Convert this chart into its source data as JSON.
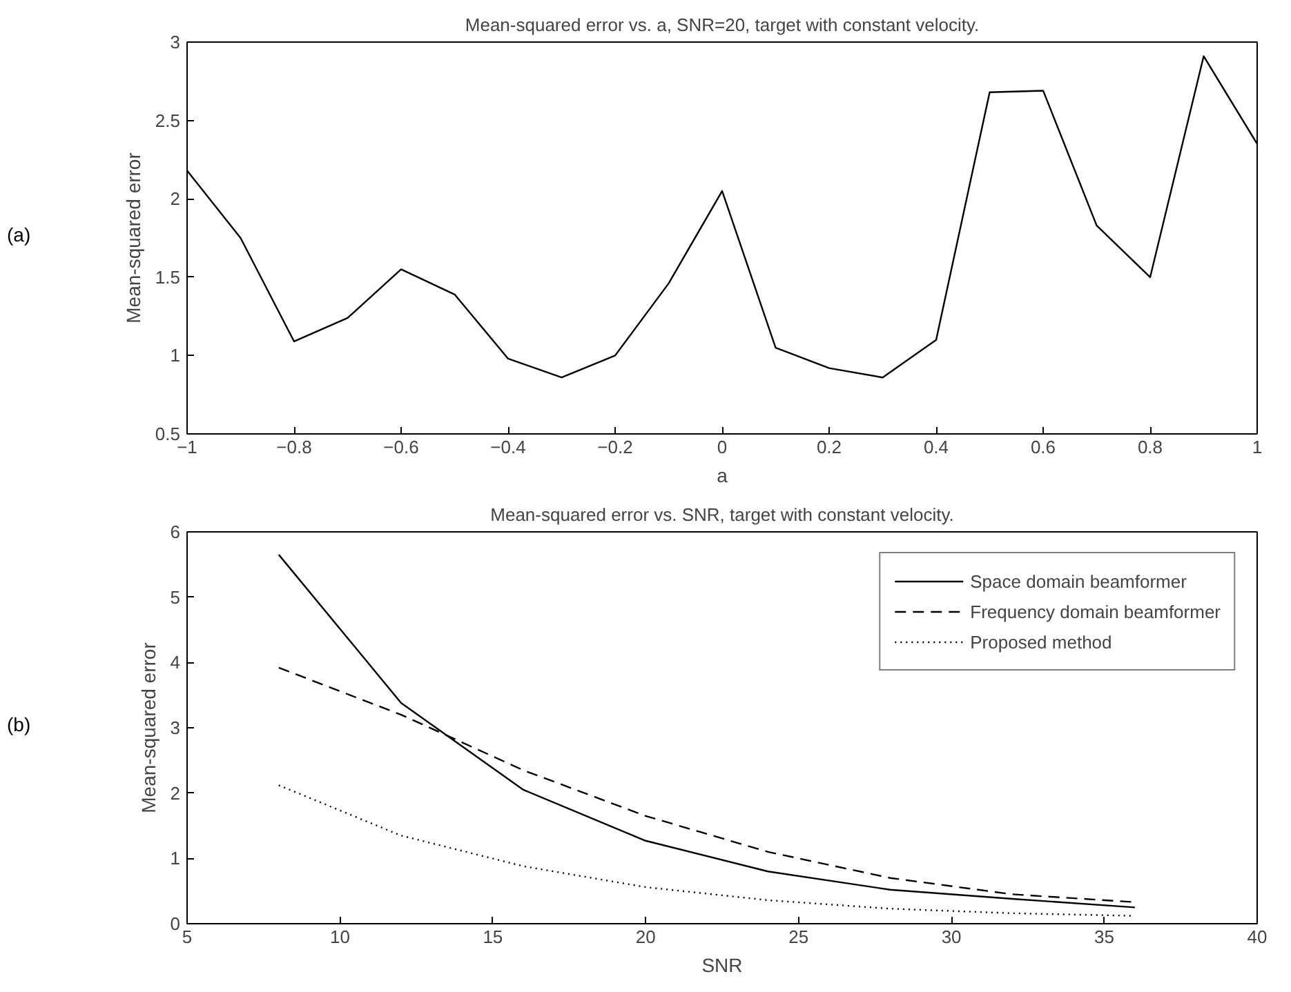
{
  "chart_data": [
    {
      "type": "line",
      "title": "Mean-squared error vs. a, SNR=20, target with constant velocity.",
      "xlabel": "a",
      "ylabel": "Mean-squared error",
      "annotations": [
        "(a)"
      ],
      "x": [
        -1,
        -0.9,
        -0.8,
        -0.7,
        -0.6,
        -0.5,
        -0.4,
        -0.3,
        -0.2,
        -0.1,
        0,
        0.1,
        0.2,
        0.3,
        0.4,
        0.5,
        0.6,
        0.7,
        0.8,
        0.9,
        1
      ],
      "series": [
        {
          "color": "#000000",
          "line_style": "solid",
          "values": [
            2.18,
            1.75,
            1.09,
            1.24,
            1.55,
            1.39,
            0.98,
            0.86,
            1.0,
            1.46,
            2.05,
            1.05,
            0.92,
            0.86,
            1.1,
            2.68,
            2.69,
            1.83,
            1.5,
            2.91,
            2.35
          ]
        }
      ],
      "xlim": [
        -1,
        1
      ],
      "xticks": [
        -1,
        -0.8,
        -0.6,
        -0.4,
        -0.2,
        0,
        0.2,
        0.4,
        0.6,
        0.8,
        1
      ],
      "ylim": [
        0.5,
        3
      ],
      "yticks": [
        0.5,
        1,
        1.5,
        2,
        2.5,
        3
      ],
      "grid": false,
      "legend": false
    },
    {
      "type": "line",
      "title": "Mean-squared error vs. SNR, target with constant velocity.",
      "xlabel": "SNR",
      "ylabel": "Mean-squared error",
      "annotations": [
        "(b)"
      ],
      "x": [
        8,
        12,
        16,
        20,
        24,
        28,
        32,
        36
      ],
      "series": [
        {
          "name": "Space domain beamformer",
          "color": "#000000",
          "line_style": "solid",
          "values": [
            5.65,
            3.38,
            2.05,
            1.27,
            0.8,
            0.52,
            0.38,
            0.25
          ]
        },
        {
          "name": "Frequency domain beamformer",
          "color": "#000000",
          "line_style": "dashed",
          "values": [
            3.92,
            3.2,
            2.35,
            1.65,
            1.1,
            0.7,
            0.45,
            0.33
          ]
        },
        {
          "name": "Proposed method",
          "color": "#000000",
          "line_style": "dotted",
          "values": [
            2.12,
            1.35,
            0.88,
            0.56,
            0.36,
            0.23,
            0.16,
            0.12
          ]
        }
      ],
      "xlim": [
        5,
        40
      ],
      "xticks": [
        5,
        10,
        15,
        20,
        25,
        30,
        35,
        40
      ],
      "ylim": [
        0,
        6
      ],
      "yticks": [
        0,
        1,
        2,
        3,
        4,
        5,
        6
      ],
      "grid": false,
      "legend": "top right"
    }
  ]
}
